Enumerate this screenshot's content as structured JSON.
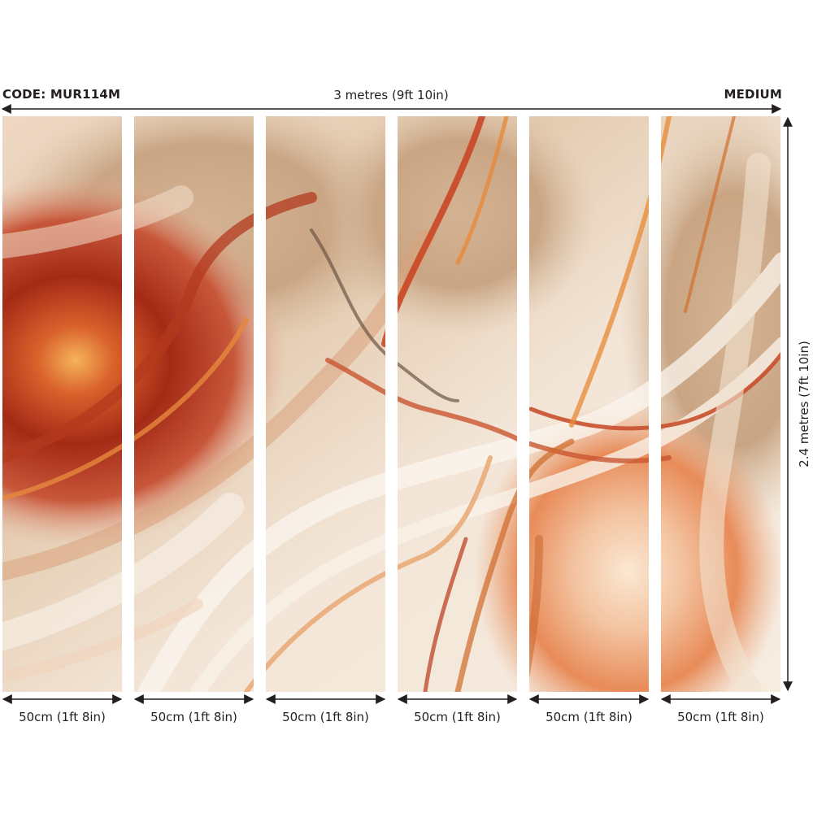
{
  "header": {
    "code_label": "CODE: MUR114M",
    "width_label": "3 metres (9ft 10in)",
    "size_label": "MEDIUM"
  },
  "height_label": "2.4 metres (7ft 10in)",
  "panels": [
    {
      "label": "50cm (1ft 8in)"
    },
    {
      "label": "50cm (1ft 8in)"
    },
    {
      "label": "50cm (1ft 8in)"
    },
    {
      "label": "50cm (1ft 8in)"
    },
    {
      "label": "50cm (1ft 8in)"
    },
    {
      "label": "50cm (1ft 8in)"
    }
  ],
  "colors": {
    "text": "#231f20",
    "cream": "#f6ece0",
    "sand": "#dcc2a6",
    "rust": "#c8502e",
    "deep_red": "#9c2613",
    "orange": "#e8893f",
    "amber": "#f5b04d"
  }
}
